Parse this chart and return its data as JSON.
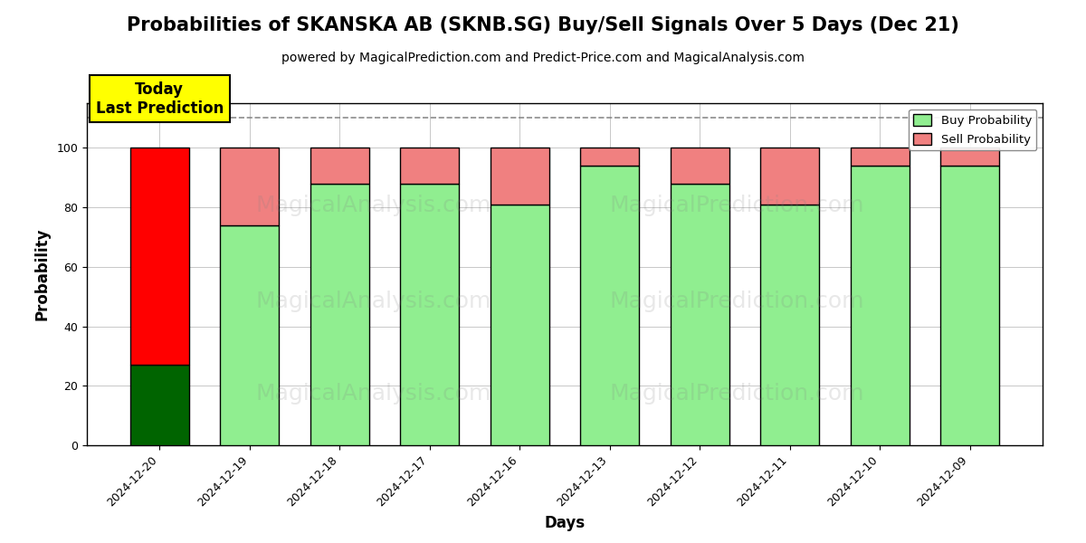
{
  "title": "Probabilities of SKANSKA AB (SKNB.SG) Buy/Sell Signals Over 5 Days (Dec 21)",
  "subtitle": "powered by MagicalPrediction.com and Predict-Price.com and MagicalAnalysis.com",
  "xlabel": "Days",
  "ylabel": "Probability",
  "categories": [
    "2024-12-20",
    "2024-12-19",
    "2024-12-18",
    "2024-12-17",
    "2024-12-16",
    "2024-12-13",
    "2024-12-12",
    "2024-12-11",
    "2024-12-10",
    "2024-12-09"
  ],
  "buy_values": [
    27,
    74,
    88,
    88,
    81,
    94,
    88,
    81,
    94,
    94
  ],
  "sell_values": [
    73,
    26,
    12,
    12,
    19,
    6,
    12,
    19,
    6,
    6
  ],
  "buy_color_today": "#006400",
  "sell_color_today": "#ff0000",
  "buy_color_normal": "#90EE90",
  "sell_color_normal": "#F08080",
  "bar_edge_color": "#000000",
  "dashed_line_y": 110,
  "ylim": [
    0,
    115
  ],
  "yticks": [
    0,
    20,
    40,
    60,
    80,
    100
  ],
  "annotation_text": "Today\nLast Prediction",
  "annotation_bg": "#ffff00",
  "legend_buy_label": "Buy Probability",
  "legend_sell_label": "Sell Probability",
  "title_fontsize": 15,
  "subtitle_fontsize": 10,
  "axis_label_fontsize": 12,
  "tick_fontsize": 9,
  "bar_width": 0.65,
  "fig_bg": "#ffffff",
  "plot_bg": "#ffffff"
}
